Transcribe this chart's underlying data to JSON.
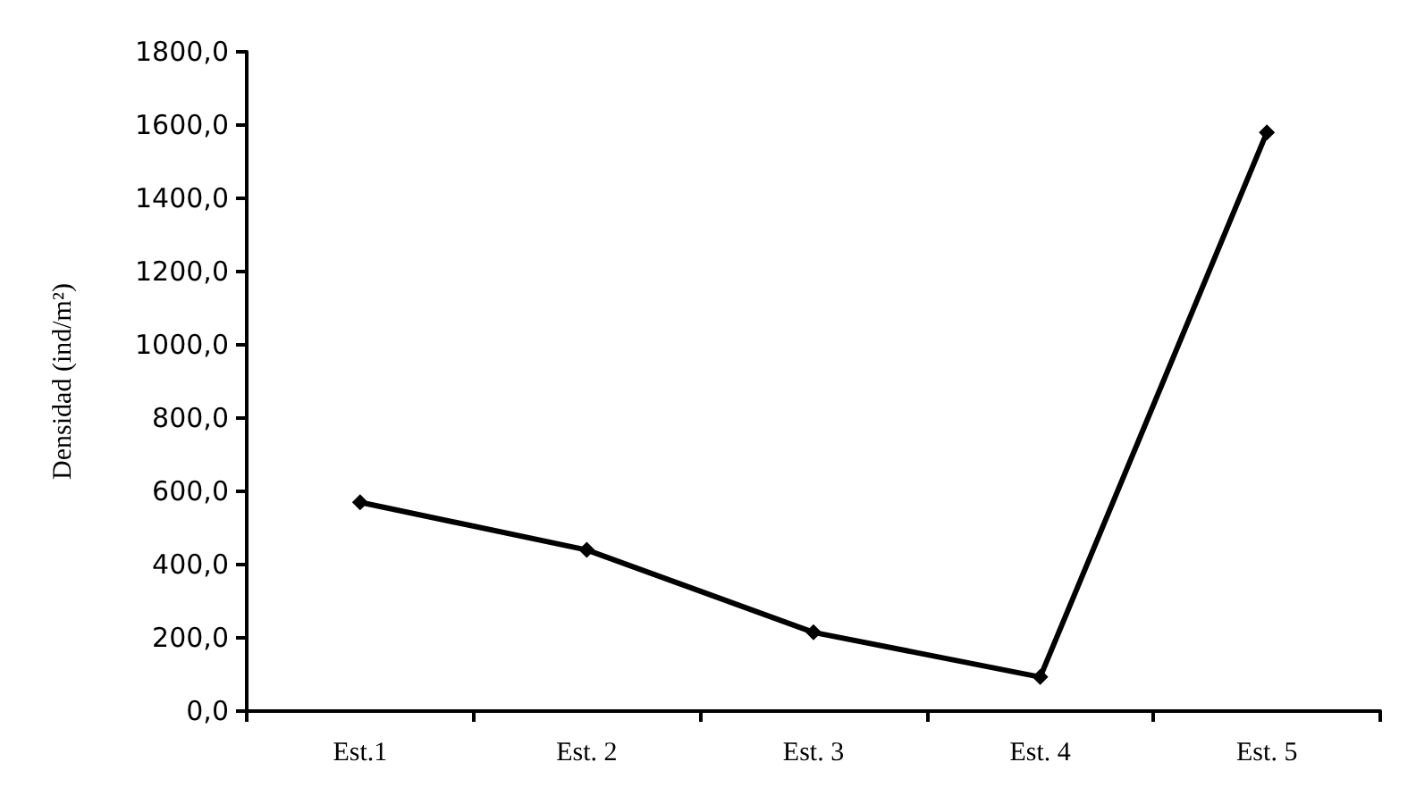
{
  "chart_data": {
    "type": "line",
    "ylabel": "Densidad (ind/m²)",
    "categories": [
      "Est.1",
      "Est. 2",
      "Est. 3",
      "Est. 4",
      "Est. 5"
    ],
    "series": [
      {
        "color": "#000000",
        "values": [
          570,
          440,
          215,
          93,
          1580
        ]
      }
    ],
    "ylim": [
      0,
      1800
    ],
    "yticks": [
      {
        "value": 0,
        "label": "0,0"
      },
      {
        "value": 200,
        "label": "200,0"
      },
      {
        "value": 400,
        "label": "400,0"
      },
      {
        "value": 600,
        "label": "600,0"
      },
      {
        "value": 800,
        "label": "800,0"
      },
      {
        "value": 1000,
        "label": "1000,0"
      },
      {
        "value": 1200,
        "label": "1200,0"
      },
      {
        "value": 1400,
        "label": "1400,0"
      },
      {
        "value": 1600,
        "label": "1600,0"
      },
      {
        "value": 1800,
        "label": "1800,0"
      }
    ],
    "grid": false,
    "marker": "diamond",
    "line_style": "solid"
  }
}
